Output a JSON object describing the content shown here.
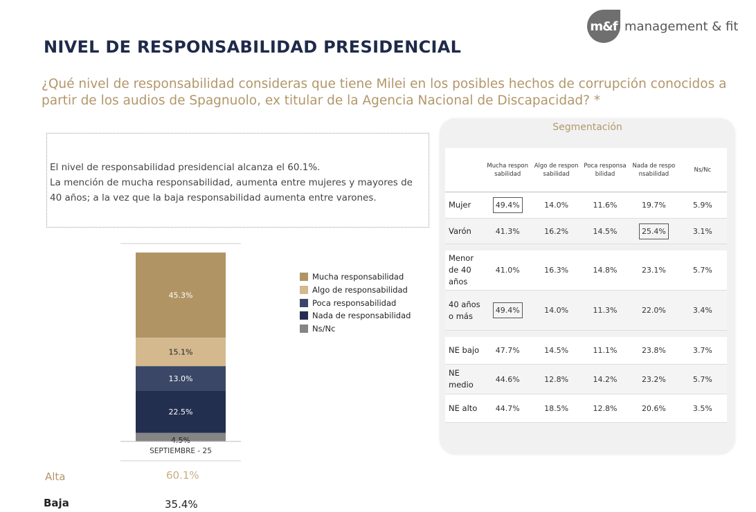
{
  "header": {
    "title": "NIVEL DE RESPONSABILIDAD PRESIDENCIAL",
    "question": "¿Qué nivel de responsabilidad consideras que tiene Milei en los posibles hechos de corrupción conocidos a partir de los audios de Spagnuolo, ex titular de la Agencia Nacional de Discapacidad? *",
    "logo_mark": "m&f",
    "logo_text": "management & fit"
  },
  "note": {
    "lines": [
      "El nivel de responsabilidad presidencial alcanza el 60.1%.",
      "La mención de mucha responsabilidad, aumenta entre mujeres y mayores de 40 años; a la vez que la baja responsabilidad aumenta entre varones."
    ]
  },
  "chart_data": {
    "type": "bar",
    "stacked": true,
    "categories": [
      "SEPTIEMBRE - 25"
    ],
    "series": [
      {
        "name": "Mucha responsabilidad",
        "values": [
          45.3
        ],
        "label": "45.3%",
        "color": "#b09464"
      },
      {
        "name": "Algo de responsabilidad",
        "values": [
          15.1
        ],
        "label": "15.1%",
        "color": "#d4b98f"
      },
      {
        "name": "Poca responsabilidad",
        "values": [
          13.0
        ],
        "label": "13.0%",
        "color": "#3a4766"
      },
      {
        "name": "Nada de responsabilidad",
        "values": [
          22.5
        ],
        "label": "22.5%",
        "color": "#232f4f"
      },
      {
        "name": "Ns/Nc",
        "values": [
          4.5
        ],
        "label": "4.5%",
        "color": "#858585"
      }
    ],
    "legend": "right",
    "ylim": [
      0,
      100.4
    ]
  },
  "summary": {
    "alta_label": "Alta",
    "alta_value": "60.1%",
    "baja_label": "Baja",
    "baja_value": "35.4%"
  },
  "segmentation": {
    "title": "Segmentación",
    "columns": [
      "Mucha respon sabilidad",
      "Algo de respon sabilidad",
      "Poca responsa bilidad",
      "Nada de respo nsabilidad",
      "Ns/Nc"
    ],
    "groups": [
      [
        {
          "label": "Mujer",
          "values": [
            "49.4%",
            "14.0%",
            "11.6%",
            "19.7%",
            "5.9%"
          ],
          "boxed": [
            0
          ]
        },
        {
          "label": "Varón",
          "values": [
            "41.3%",
            "16.2%",
            "14.5%",
            "25.4%",
            "3.1%"
          ],
          "boxed": [
            3
          ]
        }
      ],
      [
        {
          "label": "Menor de 40 años",
          "values": [
            "41.0%",
            "16.3%",
            "14.8%",
            "23.1%",
            "5.7%"
          ],
          "boxed": []
        },
        {
          "label": "40 años o más",
          "values": [
            "49.4%",
            "14.0%",
            "11.3%",
            "22.0%",
            "3.4%"
          ],
          "boxed": [
            0
          ]
        }
      ],
      [
        {
          "label": "NE bajo",
          "values": [
            "47.7%",
            "14.5%",
            "11.1%",
            "23.8%",
            "3.7%"
          ],
          "boxed": []
        },
        {
          "label": "NE medio",
          "values": [
            "44.6%",
            "12.8%",
            "14.2%",
            "23.2%",
            "5.7%"
          ],
          "boxed": []
        },
        {
          "label": "NE alto",
          "values": [
            "44.7%",
            "18.5%",
            "12.8%",
            "20.6%",
            "3.5%"
          ],
          "boxed": []
        }
      ]
    ]
  }
}
